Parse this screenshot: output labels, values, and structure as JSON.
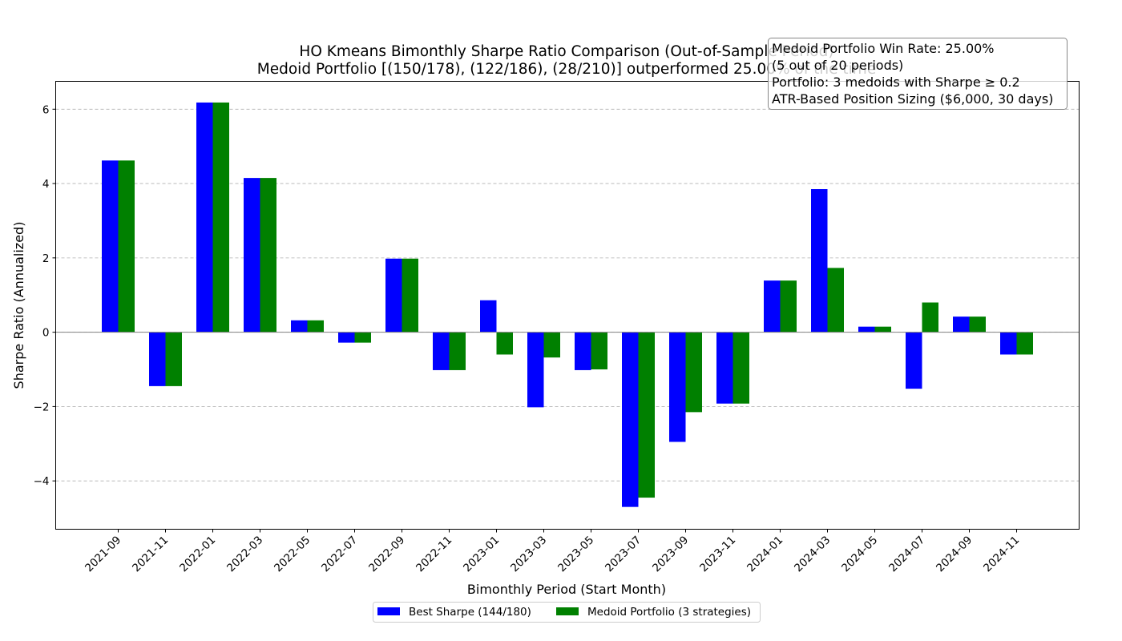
{
  "chart_data": {
    "type": "bar",
    "title_line1": "HO Kmeans Bimonthly Sharpe Ratio Comparison (Out-of-Sample Period)",
    "title_line2": "Medoid Portfolio [(150/178), (122/186), (28/210)] outperformed 25.00% of the time",
    "xlabel": "Bimonthly Period (Start Month)",
    "ylabel": "Sharpe Ratio (Annualized)",
    "ylim": [
      -5.3,
      6.75
    ],
    "yticks": [
      -4,
      -2,
      0,
      2,
      4,
      6
    ],
    "ytick_labels": [
      "−4",
      "−2",
      "0",
      "2",
      "4",
      "6"
    ],
    "grid": "y-dashed",
    "legend_placement": "bottom-center",
    "categories": [
      "2021-09",
      "2021-11",
      "2022-01",
      "2022-03",
      "2022-05",
      "2022-07",
      "2022-09",
      "2022-11",
      "2023-01",
      "2023-03",
      "2023-05",
      "2023-07",
      "2023-09",
      "2023-11",
      "2024-01",
      "2024-03",
      "2024-05",
      "2024-07",
      "2024-09",
      "2024-11"
    ],
    "series": [
      {
        "name": "Best Sharpe (144/180)",
        "color": "#0000ff",
        "values": [
          4.62,
          -1.45,
          6.18,
          4.15,
          0.32,
          -0.28,
          1.98,
          -1.02,
          0.86,
          -2.02,
          -1.02,
          -4.7,
          -2.95,
          -1.92,
          1.39,
          3.85,
          0.15,
          -1.52,
          0.42,
          -0.6
        ]
      },
      {
        "name": "Medoid Portfolio (3 strategies)",
        "color": "#008000",
        "values": [
          4.62,
          -1.45,
          6.18,
          4.15,
          0.32,
          -0.28,
          1.98,
          -1.02,
          -0.6,
          -0.68,
          -1.0,
          -4.45,
          -2.15,
          -1.92,
          1.39,
          1.73,
          0.15,
          0.8,
          0.42,
          -0.6
        ]
      }
    ],
    "info_box": [
      "Medoid Portfolio Win Rate: 25.00%",
      "(5 out of 20 periods)",
      "Portfolio: 3 medoids with Sharpe ≥ 0.2",
      "ATR-Based Position Sizing ($6,000, 30 days)"
    ]
  }
}
